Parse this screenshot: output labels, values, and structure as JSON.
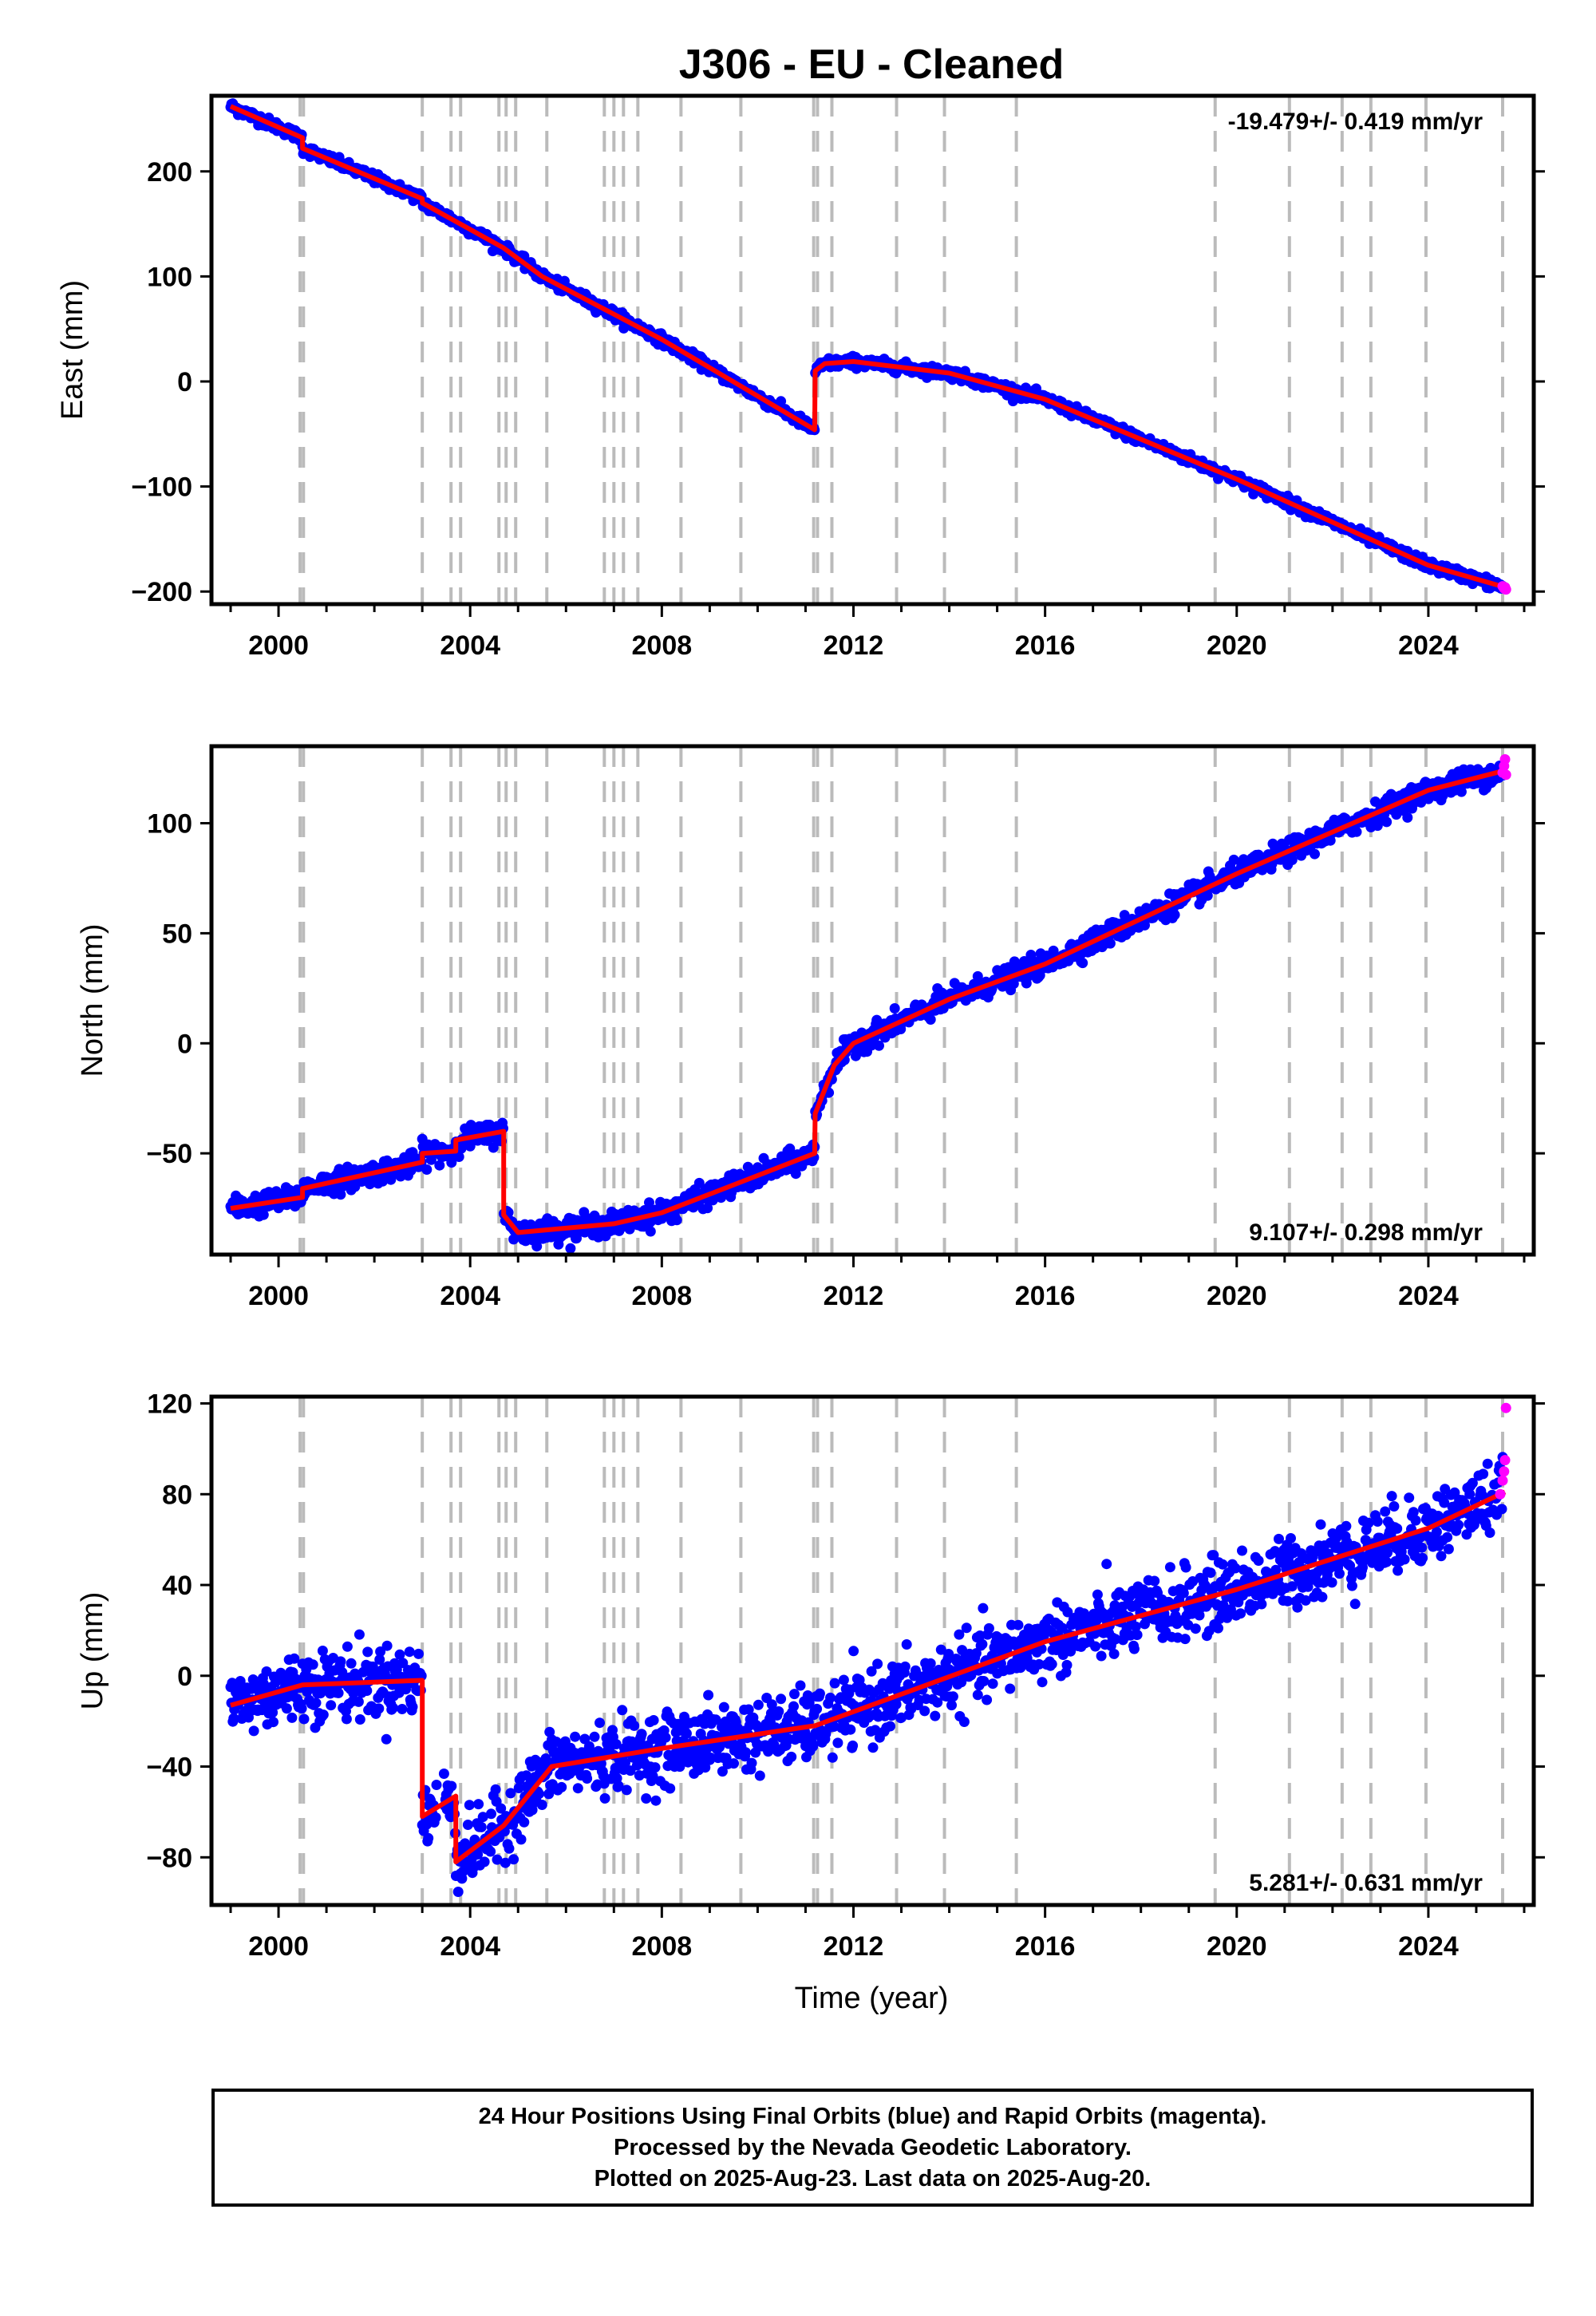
{
  "title": "J306  - EU - Cleaned",
  "xlabel": "Time (year)",
  "caption": [
    "24 Hour Positions Using Final Orbits (blue) and Rapid Orbits (magenta).",
    "Processed by the Nevada Geodetic Laboratory.",
    "Plotted on 2025-Aug-23. Last data on 2025-Aug-20."
  ],
  "colors": {
    "final": "#0000ff",
    "rapid": "#ff00ff",
    "model": "#ff0000",
    "steps": "#bbbbbb"
  },
  "chart_data": [
    {
      "type": "scatter",
      "ylabel": "East (mm)",
      "rate_label": "-19.479+/- 0.419 mm/yr",
      "rate_position": "top-right",
      "xlim": [
        1998.6,
        2026.2
      ],
      "ylim": [
        -212,
        272
      ],
      "xticks": [
        "2000",
        "2004",
        "2008",
        "2012",
        "2016",
        "2020",
        "2024"
      ],
      "yticks": [
        "-200",
        "-100",
        "0",
        "100",
        "200"
      ],
      "noise_mm": 2.5,
      "model_line": {
        "x": [
          1999.0,
          2000.5,
          2000.5,
          2003.0,
          2003.0,
          2004.7,
          2005.5,
          2008.0,
          2011.19,
          2011.2,
          2011.4,
          2012.0,
          2014.0,
          2016.0,
          2020.0,
          2024.0,
          2025.6
        ],
        "y": [
          262,
          232,
          222,
          174,
          170,
          127,
          100,
          40,
          -46,
          10,
          17,
          19,
          8,
          -17,
          -93,
          -175,
          -196
        ]
      },
      "rapid_points": {
        "x": [
          2025.55,
          2025.58,
          2025.6,
          2025.62
        ],
        "y": [
          -195,
          -197,
          -196,
          -198
        ]
      }
    },
    {
      "type": "scatter",
      "ylabel": "North (mm)",
      "rate_label": "9.107+/- 0.298 mm/yr",
      "rate_position": "bottom-right",
      "xlim": [
        1998.6,
        2026.2
      ],
      "ylim": [
        -96,
        135
      ],
      "xticks": [
        "2000",
        "2004",
        "2008",
        "2012",
        "2016",
        "2020",
        "2024"
      ],
      "yticks": [
        "-50",
        "0",
        "50",
        "100"
      ],
      "noise_mm": 2.5,
      "model_line": {
        "x": [
          1999.0,
          2000.5,
          2000.5,
          2003.0,
          2003.0,
          2003.7,
          2003.7,
          2004.7,
          2004.7,
          2005.0,
          2006.0,
          2007.0,
          2008.0,
          2011.19,
          2011.2,
          2011.6,
          2012.0,
          2014.0,
          2016.0,
          2020.0,
          2024.0,
          2025.6
        ],
        "y": [
          -75,
          -70,
          -66,
          -54,
          -50,
          -49,
          -44,
          -40,
          -78,
          -86,
          -84,
          -82,
          -77,
          -50,
          -32,
          -10,
          0,
          20,
          36,
          77,
          115,
          124
        ]
      },
      "rapid_points": {
        "x": [
          2025.55,
          2025.58,
          2025.6,
          2025.62
        ],
        "y": [
          123,
          126,
          129,
          122
        ]
      }
    },
    {
      "type": "scatter",
      "ylabel": "Up (mm)",
      "rate_label": "5.281+/- 0.631 mm/yr",
      "rate_position": "bottom-right",
      "xlim": [
        1998.6,
        2026.2
      ],
      "ylim": [
        -101,
        123
      ],
      "xticks": [
        "2000",
        "2004",
        "2008",
        "2012",
        "2016",
        "2020",
        "2024"
      ],
      "yticks": [
        "-80",
        "-40",
        "0",
        "40",
        "80",
        "120"
      ],
      "noise_mm": 7.5,
      "model_line": {
        "x": [
          1999.0,
          2000.5,
          2003.0,
          2003.0,
          2003.7,
          2003.7,
          2004.7,
          2005.7,
          2008.0,
          2011.2,
          2016.0,
          2020.0,
          2024.0,
          2025.6
        ],
        "y": [
          -13,
          -4,
          -2,
          -62,
          -53,
          -82,
          -66,
          -40,
          -32,
          -22,
          15,
          38,
          65,
          81
        ]
      },
      "data_gap": [
        2003.3,
        2003.45
      ],
      "rapid_points": {
        "x": [
          2025.5,
          2025.55,
          2025.58,
          2025.6,
          2025.62
        ],
        "y": [
          80,
          86,
          90,
          95,
          118
        ]
      }
    }
  ],
  "equipment_change_years": [
    2000.45,
    2000.52,
    2003.0,
    2003.6,
    2003.8,
    2004.6,
    2004.75,
    2004.95,
    2005.6,
    2006.8,
    2007.0,
    2007.2,
    2007.5,
    2008.4,
    2009.65,
    2011.17,
    2011.25,
    2011.55,
    2012.9,
    2013.9,
    2015.4,
    2019.55,
    2021.1,
    2022.2,
    2022.8,
    2023.95,
    2025.55
  ]
}
